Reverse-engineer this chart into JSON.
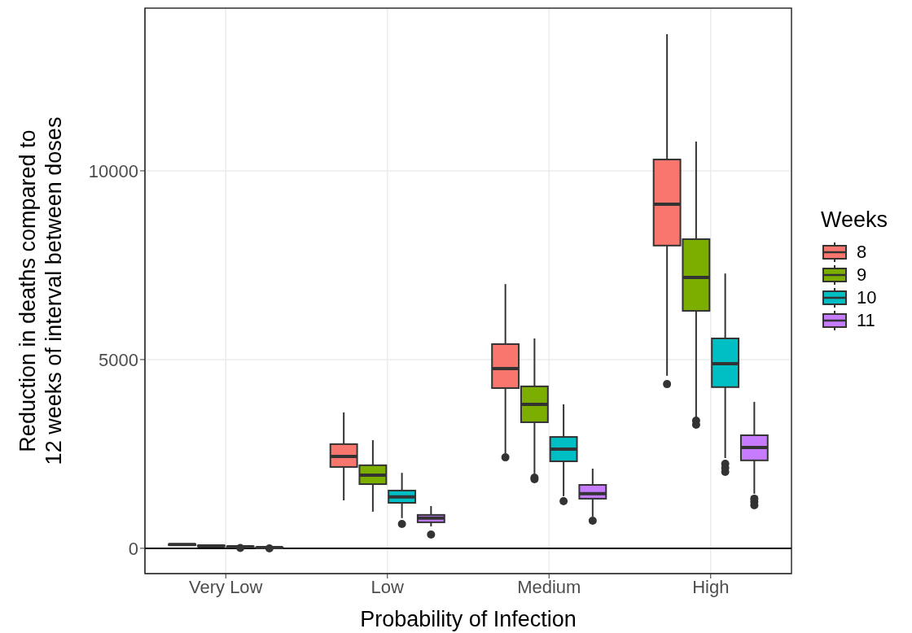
{
  "chart_data": {
    "type": "box",
    "xlabel": "Probability of Infection",
    "ylabel": "Reduction in deaths compared to\n12 weeks of interval between doses",
    "legend_title": "Weeks",
    "categories": [
      "Very Low",
      "Low",
      "Medium",
      "High"
    ],
    "series": [
      {
        "name": "8",
        "color": "#f8766d",
        "boxes": [
          {
            "low": 60,
            "q1": 85,
            "median": 100,
            "q3": 110,
            "high": 140
          },
          {
            "low": 1270,
            "q1": 2155,
            "median": 2435,
            "q3": 2760,
            "high": 3600
          },
          {
            "low": 2520,
            "q1": 4245,
            "median": 4760,
            "q3": 5410,
            "high": 7000,
            "outliers": [
              2410
            ]
          },
          {
            "low": 4570,
            "q1": 8020,
            "median": 9115,
            "q3": 10300,
            "high": 13620,
            "outliers": [
              4350
            ]
          }
        ]
      },
      {
        "name": "9",
        "color": "#7cae00",
        "boxes": [
          {
            "low": 40,
            "q1": 55,
            "median": 65,
            "q3": 75,
            "high": 100
          },
          {
            "low": 970,
            "q1": 1700,
            "median": 1940,
            "q3": 2200,
            "high": 2865
          },
          {
            "low": 1980,
            "q1": 3340,
            "median": 3815,
            "q3": 4290,
            "high": 5560,
            "outliers": [
              1875,
              1830
            ]
          },
          {
            "low": 3470,
            "q1": 6290,
            "median": 7175,
            "q3": 8190,
            "high": 10775,
            "outliers": [
              3380,
              3275
            ]
          }
        ]
      },
      {
        "name": "10",
        "color": "#00bfc4",
        "boxes": [
          {
            "low": 20,
            "q1": 30,
            "median": 40,
            "q3": 50,
            "high": 65,
            "outliers": [
              10
            ]
          },
          {
            "low": 800,
            "q1": 1205,
            "median": 1360,
            "q3": 1530,
            "high": 2000,
            "outliers": [
              645
            ]
          },
          {
            "low": 1380,
            "q1": 2305,
            "median": 2630,
            "q3": 2950,
            "high": 3815,
            "outliers": [
              1250
            ]
          },
          {
            "low": 2390,
            "q1": 4270,
            "median": 4890,
            "q3": 5560,
            "high": 7280,
            "outliers": [
              2240,
              2130,
              2025
            ]
          }
        ]
      },
      {
        "name": "11",
        "color": "#c77cff",
        "boxes": [
          {
            "low": 5,
            "q1": 12,
            "median": 18,
            "q3": 25,
            "high": 35,
            "outliers": [
              0
            ]
          },
          {
            "low": 580,
            "q1": 690,
            "median": 800,
            "q3": 885,
            "high": 1120,
            "outliers": [
              365
            ]
          },
          {
            "low": 840,
            "q1": 1315,
            "median": 1445,
            "q3": 1680,
            "high": 2110,
            "outliers": [
              730
            ]
          },
          {
            "low": 1445,
            "q1": 2330,
            "median": 2670,
            "q3": 2995,
            "high": 3880,
            "outliers": [
              1315,
              1230,
              1140
            ]
          }
        ]
      }
    ],
    "ylim": [
      -670,
      14310
    ],
    "yticks": [
      0,
      5000,
      10000
    ],
    "grid": true,
    "legend": "right",
    "ref_lines": [
      {
        "axis": "y",
        "value": 0,
        "color": "#000000"
      }
    ]
  }
}
